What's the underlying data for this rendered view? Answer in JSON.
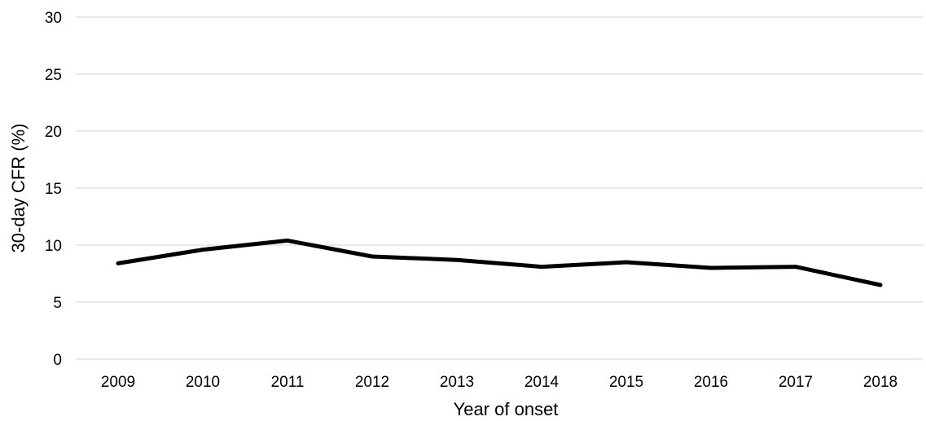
{
  "chart_data": {
    "type": "line",
    "title": "",
    "xlabel": "Year of onset",
    "ylabel": "30-day CFR (%)",
    "ylim": [
      0,
      30
    ],
    "y_ticks": [
      "0",
      "5",
      "10",
      "15",
      "20",
      "25",
      "30"
    ],
    "grid": "horizontal",
    "legend": "none",
    "categories": [
      "2009",
      "2010",
      "2011",
      "2012",
      "2013",
      "2014",
      "2015",
      "2016",
      "2017",
      "2018"
    ],
    "series": [
      {
        "values": [
          8.4,
          9.6,
          10.4,
          9.0,
          8.7,
          8.1,
          8.5,
          8.0,
          8.1,
          6.5
        ],
        "color": "#000000"
      }
    ],
    "gridline_color": "#d9d9d9"
  }
}
